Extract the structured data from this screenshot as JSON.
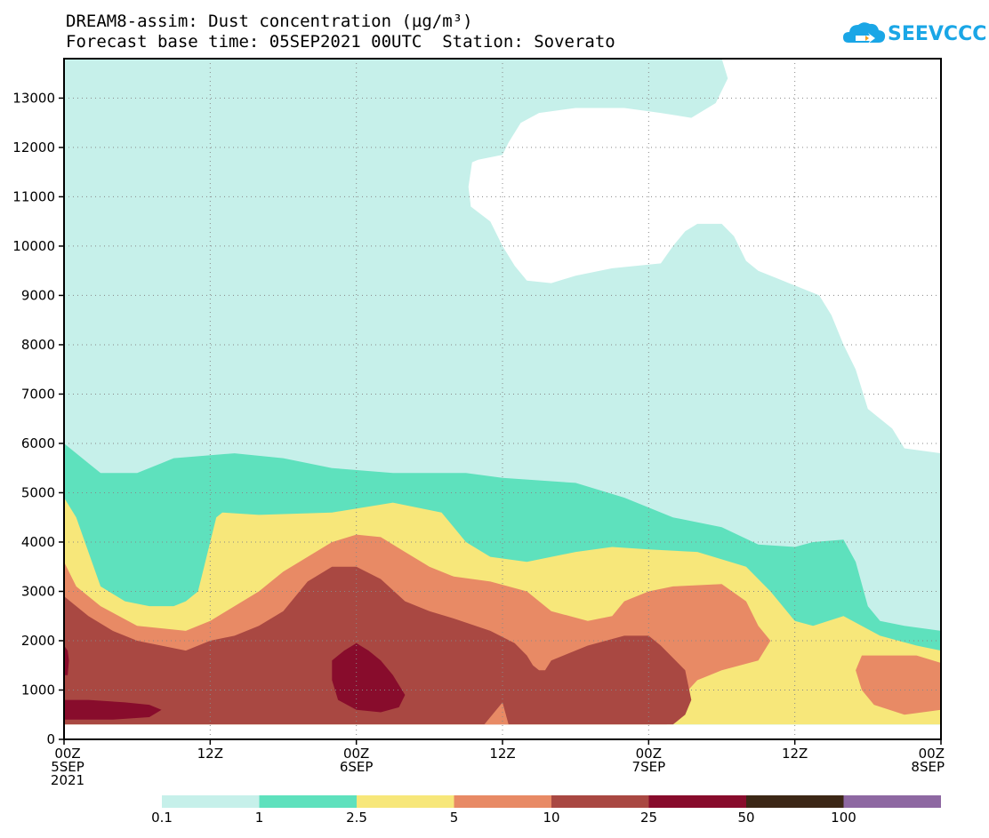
{
  "header": {
    "title_line1": "DREAM8-assim: Dust concentration (µg/m³)",
    "title_line2": "Forecast base time: 05SEP2021 00UTC  Station: Soverato",
    "logo_text": "SEEVCCC"
  },
  "chart_data": {
    "type": "area",
    "title": "DREAM8-assim: Dust concentration (µg/m³)",
    "subtitle": "Forecast base time: 05SEP2021 00UTC  Station: Soverato",
    "xlabel": "",
    "ylabel": "",
    "xlim_hours": [
      0,
      72
    ],
    "ylim": [
      0,
      13800
    ],
    "grid": true,
    "y_ticks": [
      0,
      1000,
      2000,
      3000,
      4000,
      5000,
      6000,
      7000,
      8000,
      9000,
      10000,
      11000,
      12000,
      13000
    ],
    "y_tick_labels": [
      "0",
      "1000",
      "2000",
      "3000",
      "4000",
      "5000",
      "6000",
      "7000",
      "8000",
      "9000",
      "10000",
      "11000",
      "12000",
      "13000"
    ],
    "x_ticks_hours": [
      0,
      12,
      24,
      36,
      48,
      60,
      72
    ],
    "x_tick_labels": [
      {
        "hour": 0,
        "lines": [
          "00Z",
          "5SEP",
          "2021"
        ]
      },
      {
        "hour": 12,
        "lines": [
          "12Z"
        ]
      },
      {
        "hour": 24,
        "lines": [
          "00Z",
          "6SEP"
        ]
      },
      {
        "hour": 36,
        "lines": [
          "12Z"
        ]
      },
      {
        "hour": 48,
        "lines": [
          "00Z",
          "7SEP"
        ]
      },
      {
        "hour": 60,
        "lines": [
          "12Z"
        ]
      },
      {
        "hour": 72,
        "lines": [
          "00Z",
          "8SEP"
        ]
      }
    ],
    "legend": {
      "placement": "bottom",
      "colors": [
        "#c6f0ea",
        "#5ee1bd",
        "#f7e77a",
        "#e88a65",
        "#a94842",
        "#880c2c",
        "#3c2716",
        "#8e68a2"
      ],
      "boundary_labels": [
        "0.1",
        "1",
        "2.5",
        "5",
        "10",
        "25",
        "50",
        "100"
      ]
    },
    "ground_level_m": 300,
    "bands": [
      {
        "threshold": 0.1,
        "color": "#c6f0ea",
        "top": [
          [
            0,
            13800
          ],
          [
            54,
            13800
          ],
          [
            54.5,
            13400
          ],
          [
            53.5,
            12900
          ],
          [
            51.5,
            12600
          ],
          [
            49,
            12700
          ],
          [
            46,
            12800
          ],
          [
            42,
            12800
          ],
          [
            39,
            12700
          ],
          [
            37.5,
            12500
          ],
          [
            36.5,
            12100
          ],
          [
            36,
            11850
          ],
          [
            34,
            11750
          ],
          [
            33.5,
            11700
          ],
          [
            33.2,
            11200
          ],
          [
            33.4,
            10800
          ],
          [
            35,
            10500
          ],
          [
            36,
            10000
          ],
          [
            37,
            9600
          ],
          [
            38,
            9300
          ],
          [
            40,
            9250
          ],
          [
            42,
            9400
          ],
          [
            45,
            9550
          ],
          [
            47,
            9600
          ],
          [
            49,
            9650
          ],
          [
            50,
            10000
          ],
          [
            51,
            10300
          ],
          [
            52,
            10450
          ],
          [
            54,
            10450
          ],
          [
            55,
            10200
          ],
          [
            56,
            9700
          ],
          [
            57,
            9500
          ],
          [
            59,
            9300
          ],
          [
            60,
            9200
          ],
          [
            62,
            9000
          ],
          [
            63,
            8600
          ],
          [
            64,
            8000
          ],
          [
            65,
            7500
          ],
          [
            66,
            6700
          ],
          [
            68,
            6300
          ],
          [
            69,
            5900
          ],
          [
            72,
            5800
          ]
        ]
      },
      {
        "threshold": 1,
        "color": "#5ee1bd",
        "top": [
          [
            0,
            6000
          ],
          [
            2,
            5600
          ],
          [
            3,
            5400
          ],
          [
            6,
            5400
          ],
          [
            8,
            5600
          ],
          [
            9,
            5700
          ],
          [
            14,
            5800
          ],
          [
            18,
            5700
          ],
          [
            22,
            5500
          ],
          [
            27,
            5400
          ],
          [
            33,
            5400
          ],
          [
            36,
            5300
          ],
          [
            42,
            5200
          ],
          [
            46,
            4900
          ],
          [
            50,
            4500
          ],
          [
            54,
            4300
          ],
          [
            57,
            3950
          ],
          [
            60,
            3900
          ],
          [
            61.5,
            4000
          ],
          [
            64,
            4050
          ],
          [
            65,
            3600
          ],
          [
            66,
            2700
          ],
          [
            67,
            2400
          ],
          [
            69,
            2300
          ],
          [
            72,
            2200
          ]
        ]
      },
      {
        "threshold": 2.5,
        "color": "#f7e77a",
        "top": [
          [
            0,
            4900
          ],
          [
            1,
            4500
          ],
          [
            2,
            3800
          ],
          [
            3,
            3100
          ],
          [
            5,
            2800
          ],
          [
            7,
            2700
          ],
          [
            9,
            2700
          ],
          [
            10,
            2800
          ],
          [
            11,
            3000
          ],
          [
            11.5,
            3500
          ],
          [
            12,
            4000
          ],
          [
            12.5,
            4500
          ],
          [
            13,
            4600
          ],
          [
            16,
            4550
          ],
          [
            22,
            4600
          ],
          [
            27,
            4800
          ],
          [
            31,
            4600
          ],
          [
            33,
            4000
          ],
          [
            35,
            3700
          ],
          [
            38,
            3600
          ],
          [
            42,
            3800
          ],
          [
            45,
            3900
          ],
          [
            48,
            3850
          ],
          [
            52,
            3800
          ],
          [
            56,
            3500
          ],
          [
            58,
            3000
          ],
          [
            60,
            2400
          ],
          [
            61.5,
            2300
          ],
          [
            64,
            2500
          ],
          [
            67,
            2100
          ],
          [
            70,
            1900
          ],
          [
            72,
            1800
          ]
        ]
      },
      {
        "threshold": 5,
        "color": "#e88a65",
        "top": [
          [
            0,
            3600
          ],
          [
            1,
            3100
          ],
          [
            3,
            2700
          ],
          [
            6,
            2300
          ],
          [
            10,
            2200
          ],
          [
            12,
            2400
          ],
          [
            14,
            2700
          ],
          [
            16,
            3000
          ],
          [
            18,
            3400
          ],
          [
            20,
            3700
          ],
          [
            22,
            4000
          ],
          [
            24,
            4150
          ],
          [
            26,
            4100
          ],
          [
            28,
            3800
          ],
          [
            30,
            3500
          ],
          [
            32,
            3300
          ],
          [
            35,
            3200
          ],
          [
            38,
            3000
          ],
          [
            40,
            2600
          ],
          [
            43,
            2400
          ],
          [
            45,
            2500
          ],
          [
            46,
            2800
          ],
          [
            48,
            3000
          ],
          [
            50,
            3100
          ],
          [
            54,
            3150
          ],
          [
            56,
            2800
          ],
          [
            57,
            2300
          ],
          [
            58,
            2000
          ],
          [
            57,
            1600
          ],
          [
            54,
            1400
          ],
          [
            52,
            1200
          ],
          [
            50.5,
            800
          ],
          [
            49.5,
            400
          ],
          [
            49.5,
            300
          ],
          [
            0,
            300
          ]
        ]
      },
      {
        "threshold": 5,
        "color": "#e88a65",
        "top": [
          [
            65,
            1400
          ],
          [
            65.5,
            1700
          ],
          [
            70,
            1700
          ],
          [
            72,
            1550
          ],
          [
            72,
            600
          ],
          [
            69,
            500
          ],
          [
            66.5,
            700
          ],
          [
            65.5,
            1000
          ]
        ]
      },
      {
        "threshold": 10,
        "color": "#a94842",
        "top": [
          [
            0,
            2900
          ],
          [
            2,
            2500
          ],
          [
            4,
            2200
          ],
          [
            6,
            2000
          ],
          [
            10,
            1800
          ],
          [
            12,
            2000
          ],
          [
            14,
            2100
          ],
          [
            16,
            2300
          ],
          [
            18,
            2600
          ],
          [
            20,
            3200
          ],
          [
            22,
            3500
          ],
          [
            24,
            3500
          ],
          [
            26,
            3250
          ],
          [
            28,
            2800
          ],
          [
            30,
            2600
          ],
          [
            32,
            2450
          ],
          [
            35,
            2200
          ],
          [
            37,
            1950
          ],
          [
            38,
            1700
          ],
          [
            38.5,
            1500
          ],
          [
            39,
            1400
          ],
          [
            39.5,
            1400
          ],
          [
            40,
            1600
          ],
          [
            43,
            1900
          ],
          [
            46,
            2100
          ],
          [
            48,
            2100
          ],
          [
            49,
            1900
          ],
          [
            51,
            1400
          ],
          [
            51.5,
            800
          ],
          [
            51,
            500
          ],
          [
            50,
            300
          ],
          [
            0,
            300
          ]
        ]
      },
      {
        "threshold": 25,
        "color": "#880c2c",
        "top": [
          [
            0,
            1900
          ],
          [
            0.3,
            1800
          ],
          [
            0.4,
            1600
          ],
          [
            0.3,
            1300
          ],
          [
            0,
            1300
          ]
        ]
      },
      {
        "threshold": 25,
        "color": "#880c2c",
        "top": [
          [
            0,
            800
          ],
          [
            2,
            800
          ],
          [
            5,
            750
          ],
          [
            7,
            700
          ],
          [
            8,
            600
          ],
          [
            7,
            450
          ],
          [
            4,
            400
          ],
          [
            0,
            400
          ]
        ]
      },
      {
        "threshold": 25,
        "color": "#880c2c",
        "top": [
          [
            22,
            1600
          ],
          [
            23,
            1800
          ],
          [
            24,
            1950
          ],
          [
            25,
            1800
          ],
          [
            26,
            1600
          ],
          [
            27,
            1300
          ],
          [
            28,
            900
          ],
          [
            27.5,
            650
          ],
          [
            26,
            550
          ],
          [
            24,
            600
          ],
          [
            22.5,
            800
          ],
          [
            22,
            1200
          ]
        ]
      }
    ],
    "ground_notch": [
      [
        34.5,
        300
      ],
      [
        36,
        750
      ],
      [
        36.5,
        300
      ]
    ]
  }
}
